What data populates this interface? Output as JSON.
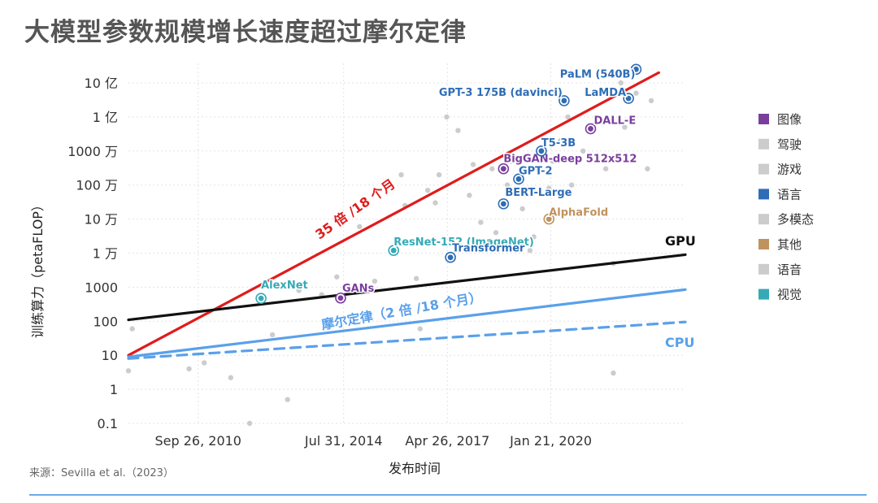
{
  "title": "大模型参数规模增长速度超过摩尔定律",
  "source": "来源：Sevilla et al.（2023）",
  "colors": {
    "red": "#e01b1b",
    "black": "#111111",
    "blue": "#5aa0ea",
    "purple": "#7a3f9d",
    "gray": "#cccccc",
    "language": "#2e6db5",
    "other": "#c0925e",
    "vision": "#35aab5"
  },
  "chart_data": {
    "type": "scatter",
    "xlabel": "发布时间",
    "ylabel": "训练算力（petaFLOP）",
    "x_ticks": [
      "Sep 26, 2010",
      "Jul 31, 2014",
      "Apr 26, 2017",
      "Jan 21, 2020"
    ],
    "xlim": [
      2008.9,
      2023.6
    ],
    "y_ticks": [
      "0.1",
      "1",
      "10",
      "100",
      "1000",
      "1 万",
      "10 万",
      "100 万",
      "1000 万",
      "1 亿",
      "10 亿"
    ],
    "ylim_log10": [
      -1,
      9
    ],
    "legend": [
      {
        "name": "图像",
        "color": "#7a3f9d"
      },
      {
        "name": "驾驶",
        "color": "#cccccc"
      },
      {
        "name": "游戏",
        "color": "#cccccc"
      },
      {
        "name": "语言",
        "color": "#2e6db5"
      },
      {
        "name": "多模态",
        "color": "#cccccc"
      },
      {
        "name": "其他",
        "color": "#c0925e"
      },
      {
        "name": "语音",
        "color": "#cccccc"
      },
      {
        "name": "视觉",
        "color": "#35aab5"
      }
    ],
    "trend_lines": [
      {
        "label": "35 倍 /18 个月",
        "color": "#e01b1b",
        "dash": false,
        "x": [
          2008.9,
          2022.9
        ],
        "y": [
          10,
          2000000000.0
        ]
      },
      {
        "label": "GPU",
        "color": "#111111",
        "dash": false,
        "x": [
          2008.9,
          2023.6
        ],
        "y": [
          110,
          9000
        ]
      },
      {
        "label": "摩尔定律（2 倍 /18 个月）",
        "color": "#5aa0ea",
        "dash": false,
        "x": [
          2008.9,
          2023.6
        ],
        "y": [
          9,
          850
        ]
      },
      {
        "label": "CPU",
        "color": "#5aa0ea",
        "dash": true,
        "x": [
          2008.9,
          2023.6
        ],
        "y": [
          8,
          95
        ]
      }
    ],
    "labeled_points": [
      {
        "name": "AlexNet",
        "x": 2012.4,
        "y": 470,
        "category": "视觉"
      },
      {
        "name": "GANs",
        "x": 2014.5,
        "y": 480,
        "category": "图像"
      },
      {
        "name": "ResNet-152 (ImageNet)",
        "x": 2015.9,
        "y": 12000,
        "category": "视觉"
      },
      {
        "name": "Transformer",
        "x": 2017.4,
        "y": 7500,
        "category": "语言"
      },
      {
        "name": "BERT-Large",
        "x": 2018.8,
        "y": 280000,
        "category": "语言"
      },
      {
        "name": "BigGAN-deep 512x512",
        "x": 2018.8,
        "y": 3000000,
        "category": "图像"
      },
      {
        "name": "GPT-2",
        "x": 2019.2,
        "y": 1500000,
        "category": "语言"
      },
      {
        "name": "T5-3B",
        "x": 2019.8,
        "y": 10000000,
        "category": "语言"
      },
      {
        "name": "AlphaFold",
        "x": 2020.0,
        "y": 100000,
        "category": "其他"
      },
      {
        "name": "GPT-3 175B (davinci)",
        "x": 2020.4,
        "y": 300000000,
        "category": "语言"
      },
      {
        "name": "DALL-E",
        "x": 2021.1,
        "y": 45000000,
        "category": "图像"
      },
      {
        "name": "PaLM (540B)",
        "x": 2022.3,
        "y": 2500000000,
        "category": "语言"
      },
      {
        "name": "LaMDA",
        "x": 2022.1,
        "y": 350000000,
        "category": "语言"
      }
    ],
    "background_points": [
      {
        "x": 2008.9,
        "y": 3.5
      },
      {
        "x": 2009.0,
        "y": 60
      },
      {
        "x": 2010.5,
        "y": 4
      },
      {
        "x": 2010.9,
        "y": 6
      },
      {
        "x": 2011.6,
        "y": 2.2
      },
      {
        "x": 2012.1,
        "y": 0.1
      },
      {
        "x": 2012.7,
        "y": 40
      },
      {
        "x": 2013.1,
        "y": 0.5
      },
      {
        "x": 2013.4,
        "y": 800
      },
      {
        "x": 2014.0,
        "y": 600
      },
      {
        "x": 2014.4,
        "y": 2000
      },
      {
        "x": 2014.8,
        "y": 800
      },
      {
        "x": 2015.0,
        "y": 60000
      },
      {
        "x": 2015.4,
        "y": 1500
      },
      {
        "x": 2016.1,
        "y": 2000000
      },
      {
        "x": 2016.2,
        "y": 250000
      },
      {
        "x": 2016.5,
        "y": 1800
      },
      {
        "x": 2016.6,
        "y": 60
      },
      {
        "x": 2016.8,
        "y": 700000
      },
      {
        "x": 2017.0,
        "y": 300000
      },
      {
        "x": 2017.1,
        "y": 2000000
      },
      {
        "x": 2017.3,
        "y": 100000000
      },
      {
        "x": 2017.6,
        "y": 40000000
      },
      {
        "x": 2017.9,
        "y": 500000
      },
      {
        "x": 2018.0,
        "y": 4000000
      },
      {
        "x": 2018.2,
        "y": 80000
      },
      {
        "x": 2018.4,
        "y": 500000000
      },
      {
        "x": 2018.5,
        "y": 3000000
      },
      {
        "x": 2018.6,
        "y": 40000
      },
      {
        "x": 2018.9,
        "y": 1000000
      },
      {
        "x": 2019.0,
        "y": 5000000
      },
      {
        "x": 2019.3,
        "y": 200000
      },
      {
        "x": 2019.5,
        "y": 12000
      },
      {
        "x": 2019.6,
        "y": 30000
      },
      {
        "x": 2019.7,
        "y": 3000000
      },
      {
        "x": 2020.0,
        "y": 800000
      },
      {
        "x": 2020.1,
        "y": 5000000
      },
      {
        "x": 2020.3,
        "y": 20000000
      },
      {
        "x": 2020.5,
        "y": 100000000
      },
      {
        "x": 2020.6,
        "y": 1000000
      },
      {
        "x": 2020.9,
        "y": 10000000
      },
      {
        "x": 2021.3,
        "y": 100000000
      },
      {
        "x": 2021.5,
        "y": 3000000
      },
      {
        "x": 2021.7,
        "y": 5000
      },
      {
        "x": 2021.7,
        "y": 3
      },
      {
        "x": 2021.9,
        "y": 1000000000
      },
      {
        "x": 2022.0,
        "y": 50000000
      },
      {
        "x": 2022.3,
        "y": 500000000
      },
      {
        "x": 2022.6,
        "y": 3000000
      },
      {
        "x": 2022.7,
        "y": 300000000
      }
    ]
  }
}
